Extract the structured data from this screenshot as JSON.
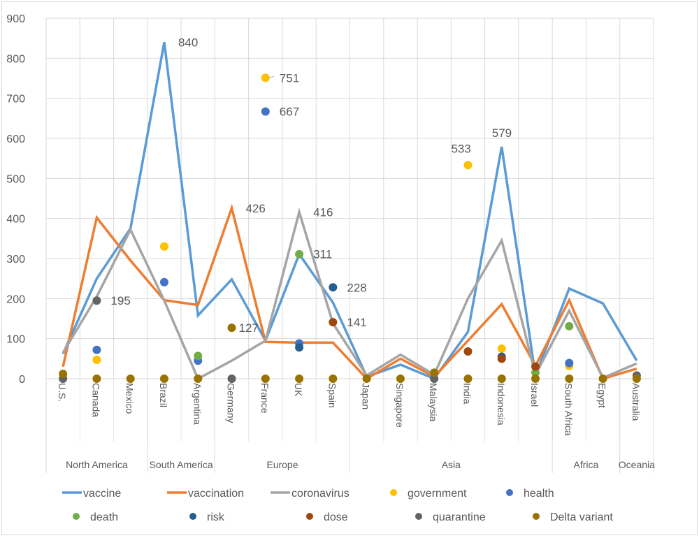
{
  "chart_data": {
    "type": "line",
    "title": "",
    "xlabel": "",
    "ylabel": "",
    "ylim": [
      0,
      900
    ],
    "yticks": [
      0,
      100,
      200,
      300,
      400,
      500,
      600,
      700,
      800,
      900
    ],
    "grid": true,
    "legend_position": "bottom",
    "categories": [
      "U.S.",
      "Canada",
      "Mexico",
      "Brazil",
      "Argentina",
      "Germany",
      "France",
      "UK",
      "Spain",
      "Japan",
      "Singapore",
      "Malaysia",
      "India",
      "Indonesia",
      "Israel",
      "South Africa",
      "Egypt",
      "Australia"
    ],
    "groups": [
      {
        "name": "North America",
        "count": 3
      },
      {
        "name": "South America",
        "count": 2
      },
      {
        "name": "Europe",
        "count": 4
      },
      {
        "name": "Asia",
        "count": 6
      },
      {
        "name": "Africa",
        "count": 2
      },
      {
        "name": "Oceania",
        "count": 1
      }
    ],
    "series": [
      {
        "name": "vaccine",
        "kind": "line",
        "color": "#5b9bd5",
        "values": [
          62,
          250,
          375,
          840,
          158,
          248,
          95,
          311,
          190,
          5,
          35,
          0,
          117,
          579,
          8,
          225,
          188,
          45
        ],
        "labels": {
          "3": "840",
          "13": "579"
        }
      },
      {
        "name": "vaccination",
        "kind": "line",
        "color": "#ed7d31",
        "values": [
          30,
          402,
          295,
          196,
          184,
          426,
          92,
          90,
          90,
          0,
          50,
          5,
          95,
          186,
          32,
          196,
          0,
          25
        ],
        "labels": {
          "5": "426"
        }
      },
      {
        "name": "coronavirus",
        "kind": "line",
        "color": "#a5a5a5",
        "values": [
          65,
          205,
          372,
          195,
          0,
          45,
          95,
          416,
          138,
          8,
          60,
          10,
          200,
          345,
          10,
          170,
          2,
          38
        ],
        "labels": {
          "7": "416"
        }
      },
      {
        "name": "government",
        "kind": "point",
        "color": "#ffc000",
        "values": [
          null,
          47,
          null,
          330,
          null,
          null,
          751,
          null,
          null,
          null,
          null,
          null,
          533,
          75,
          null,
          32,
          null,
          null
        ],
        "labels": {
          "6": "751",
          "12": "533"
        }
      },
      {
        "name": "health",
        "kind": "point",
        "color": "#4472c4",
        "values": [
          null,
          72,
          null,
          241,
          45,
          null,
          667,
          88,
          null,
          null,
          null,
          null,
          null,
          null,
          null,
          39,
          null,
          null
        ],
        "labels": {
          "6": "667"
        }
      },
      {
        "name": "death",
        "kind": "point",
        "color": "#70ad47",
        "values": [
          null,
          null,
          null,
          null,
          57,
          null,
          null,
          311,
          null,
          null,
          null,
          null,
          null,
          null,
          15,
          131,
          null,
          null
        ],
        "labels": {
          "7": "311"
        }
      },
      {
        "name": "risk",
        "kind": "point",
        "color": "#255e91",
        "values": [
          null,
          null,
          null,
          null,
          null,
          null,
          null,
          78,
          228,
          null,
          null,
          null,
          null,
          55,
          null,
          null,
          null,
          null
        ],
        "labels": {
          "8": "228"
        }
      },
      {
        "name": "dose",
        "kind": "point",
        "color": "#9e480e",
        "values": [
          null,
          null,
          null,
          null,
          null,
          null,
          null,
          null,
          141,
          null,
          null,
          null,
          68,
          50,
          30,
          null,
          null,
          null
        ],
        "labels": {
          "8": "141"
        }
      },
      {
        "name": "quarantine",
        "kind": "point",
        "color": "#636363",
        "values": [
          0,
          195,
          null,
          null,
          null,
          0,
          null,
          null,
          null,
          null,
          null,
          0,
          null,
          null,
          null,
          null,
          null,
          8
        ],
        "labels": {
          "1": "195"
        }
      },
      {
        "name": "Delta variant",
        "kind": "point",
        "color": "#997300",
        "values": [
          12,
          0,
          0,
          0,
          0,
          127,
          0,
          0,
          0,
          0,
          0,
          15,
          0,
          0,
          0,
          0,
          0,
          0
        ],
        "labels": {
          "5": "127"
        }
      }
    ]
  }
}
